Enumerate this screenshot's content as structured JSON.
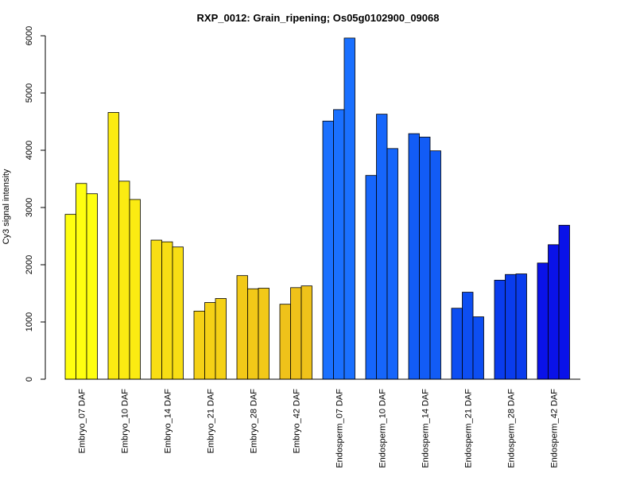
{
  "chart_data": {
    "type": "bar",
    "title": "RXP_0012: Grain_ripening; Os05g0102900_09068",
    "ylabel": "Cy3 signal intensity",
    "xlabel": "",
    "ylim": [
      0,
      6000
    ],
    "yticks": [
      0,
      1000,
      2000,
      3000,
      4000,
      5000,
      6000
    ],
    "grid": false,
    "legend": "none",
    "categories": [
      "Embryo_07 DAF",
      "Embryo_10 DAF",
      "Embryo_14 DAF",
      "Embryo_21 DAF",
      "Embryo_28 DAF",
      "Embryo_42 DAF",
      "Endosperm_07 DAF",
      "Endosperm_10 DAF",
      "Endosperm_14 DAF",
      "Endosperm_21 DAF",
      "Endosperm_28 DAF",
      "Endosperm_42 DAF"
    ],
    "values": [
      [
        2880,
        3420,
        3240
      ],
      [
        4660,
        3460,
        3140
      ],
      [
        2430,
        2400,
        2310
      ],
      [
        1190,
        1340,
        1410
      ],
      [
        1810,
        1580,
        1590
      ],
      [
        1310,
        1600,
        1630
      ],
      [
        4510,
        4710,
        5960
      ],
      [
        3560,
        4630,
        4030
      ],
      [
        4290,
        4230,
        3990
      ],
      [
        1240,
        1520,
        1090
      ],
      [
        1730,
        1830,
        1840
      ],
      [
        2030,
        2350,
        2690
      ]
    ],
    "colors": [
      "#ffff10",
      "#fbeb12",
      "#f8de14",
      "#f5d116",
      "#f2c918",
      "#efc21a",
      "#1a70ff",
      "#1666fb",
      "#125cf6",
      "#0d4ef2",
      "#0a3ced",
      "#0a12e8"
    ]
  }
}
